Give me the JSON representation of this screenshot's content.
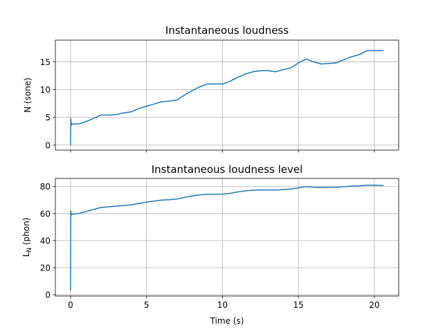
{
  "chart_data": [
    {
      "type": "line",
      "title": "Instantaneous loudness",
      "xlabel": "",
      "ylabel": "N (sone)",
      "xlim": [
        -1,
        21.6
      ],
      "ylim": [
        -0.9,
        18.9
      ],
      "xticks": [
        0,
        5,
        10,
        15,
        20
      ],
      "xtick_labels": [
        "",
        "",
        "",
        "",
        ""
      ],
      "yticks": [
        0,
        5,
        10,
        15
      ],
      "ytick_labels": [
        "0",
        "5",
        "10",
        "15"
      ],
      "grid": true,
      "color": "#1f77b4",
      "series": [
        {
          "x": [
            0,
            0.01,
            0.05,
            0.1,
            0.5,
            1,
            1.5,
            2,
            2.5,
            3,
            3.5,
            4,
            4.5,
            5,
            5.5,
            6,
            6.5,
            7,
            7.5,
            8,
            8.5,
            9,
            9.5,
            10,
            10.5,
            11,
            11.5,
            12,
            12.5,
            13,
            13.5,
            14,
            14.5,
            15,
            15.5,
            16,
            16.5,
            17,
            17.5,
            18,
            18.5,
            19,
            19.5,
            20,
            20.6
          ],
          "y": [
            0,
            4.8,
            3.6,
            3.8,
            3.8,
            4.2,
            4.8,
            5.4,
            5.4,
            5.5,
            5.8,
            6.0,
            6.6,
            7.0,
            7.4,
            7.8,
            7.9,
            8.1,
            9.0,
            9.8,
            10.5,
            11.0,
            11.0,
            11.0,
            11.5,
            12.2,
            12.8,
            13.2,
            13.4,
            13.4,
            13.2,
            13.6,
            13.9,
            14.8,
            15.5,
            15.0,
            14.6,
            14.7,
            14.8,
            15.4,
            15.9,
            16.3,
            17.0,
            17.0,
            17.0
          ]
        }
      ]
    },
    {
      "type": "line",
      "title": "Instantaneous loudness level",
      "xlabel": "Time (s)",
      "ylabel": "L",
      "ylabel_sub": "N",
      "ylabel_unit": " (phon)",
      "xlim": [
        -1,
        21.6
      ],
      "ylim": [
        -1,
        86
      ],
      "xticks": [
        0,
        5,
        10,
        15,
        20
      ],
      "xtick_labels": [
        "0",
        "5",
        "10",
        "15",
        "20"
      ],
      "yticks": [
        0,
        20,
        40,
        60,
        80
      ],
      "ytick_labels": [
        "0",
        "20",
        "40",
        "60",
        "80"
      ],
      "grid": true,
      "color": "#1f77b4",
      "series": [
        {
          "x": [
            0,
            0.01,
            0.05,
            0.1,
            0.5,
            1,
            1.5,
            2,
            2.5,
            3,
            3.5,
            4,
            4.5,
            5,
            5.5,
            6,
            6.5,
            7,
            7.5,
            8,
            8.5,
            9,
            9.5,
            10,
            10.5,
            11,
            11.5,
            12,
            12.5,
            13,
            13.5,
            14,
            14.5,
            15,
            15.5,
            16,
            16.5,
            17,
            17.5,
            18,
            18.5,
            19,
            19.5,
            20,
            20.6
          ],
          "y": [
            3,
            62,
            59,
            59.5,
            60,
            61.5,
            63,
            64.5,
            65,
            65.5,
            66,
            66.5,
            67.5,
            68.5,
            69.2,
            70,
            70.3,
            70.8,
            72,
            73,
            73.8,
            74.3,
            74.3,
            74.4,
            75,
            76,
            76.8,
            77.3,
            77.5,
            77.5,
            77.4,
            77.8,
            78.2,
            79,
            80,
            79.5,
            79.3,
            79.4,
            79.5,
            80,
            80.3,
            80.6,
            81,
            81,
            80.8
          ]
        }
      ]
    }
  ]
}
